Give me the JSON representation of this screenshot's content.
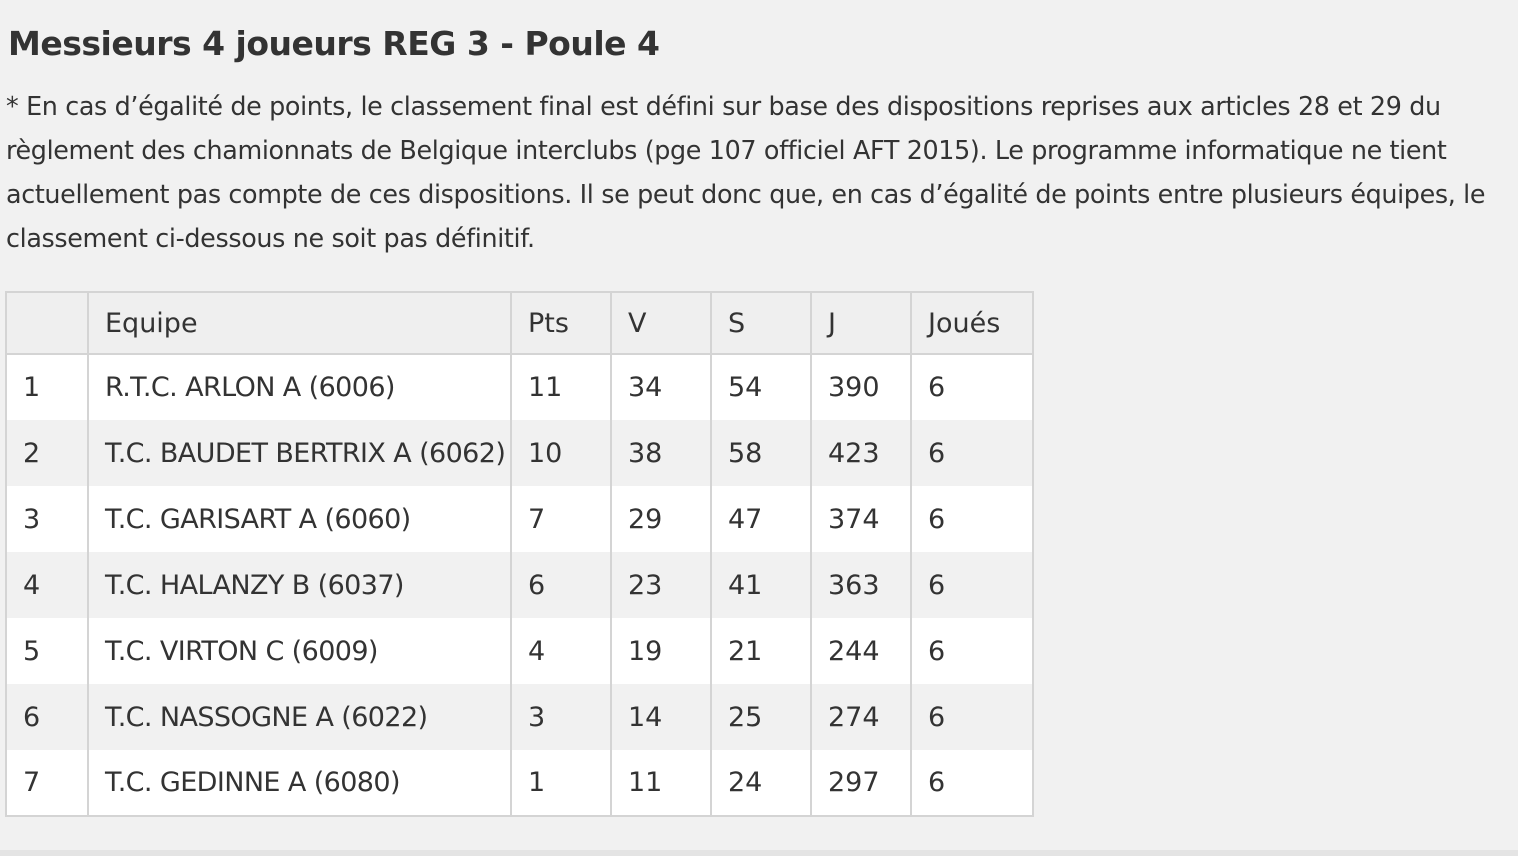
{
  "page": {
    "title": "Messieurs 4 joueurs REG 3 - Poule 4",
    "note": "* En cas d’égalité de points, le classement final est défini sur base des dispositions reprises aux articles 28 et 29 du règlement des chamionnats de Belgique interclubs (pge 107 officiel AFT 2015). Le programme informatique ne tient actuellement pas compte de ces dispositions. Il se peut donc que, en cas d’égalité de points entre plusieurs équipes, le classement ci-dessous ne soit pas définitif."
  },
  "table": {
    "headers": {
      "rank": "",
      "team": "Equipe",
      "pts": "Pts",
      "v": "V",
      "s": "S",
      "j": "J",
      "played": "Joués"
    },
    "rows": [
      {
        "rank": "1",
        "team": "R.T.C. ARLON A (6006)",
        "pts": "11",
        "v": "34",
        "s": "54",
        "j": "390",
        "played": "6"
      },
      {
        "rank": "2",
        "team": "T.C. BAUDET BERTRIX A (6062)",
        "pts": "10",
        "v": "38",
        "s": "58",
        "j": "423",
        "played": "6"
      },
      {
        "rank": "3",
        "team": "T.C. GARISART A (6060)",
        "pts": "7",
        "v": "29",
        "s": "47",
        "j": "374",
        "played": "6"
      },
      {
        "rank": "4",
        "team": "T.C. HALANZY B (6037)",
        "pts": "6",
        "v": "23",
        "s": "41",
        "j": "363",
        "played": "6"
      },
      {
        "rank": "5",
        "team": "T.C. VIRTON C (6009)",
        "pts": "4",
        "v": "19",
        "s": "21",
        "j": "244",
        "played": "6"
      },
      {
        "rank": "6",
        "team": "T.C. NASSOGNE A (6022)",
        "pts": "3",
        "v": "14",
        "s": "25",
        "j": "274",
        "played": "6"
      },
      {
        "rank": "7",
        "team": "T.C. GEDINNE A (6080)",
        "pts": "1",
        "v": "11",
        "s": "24",
        "j": "297",
        "played": "6"
      }
    ]
  },
  "colors": {
    "background": "#f1f1f1",
    "text": "#333333",
    "row_white": "#ffffff",
    "row_grey": "#f1f1f1",
    "border": "#d4d4d4"
  }
}
